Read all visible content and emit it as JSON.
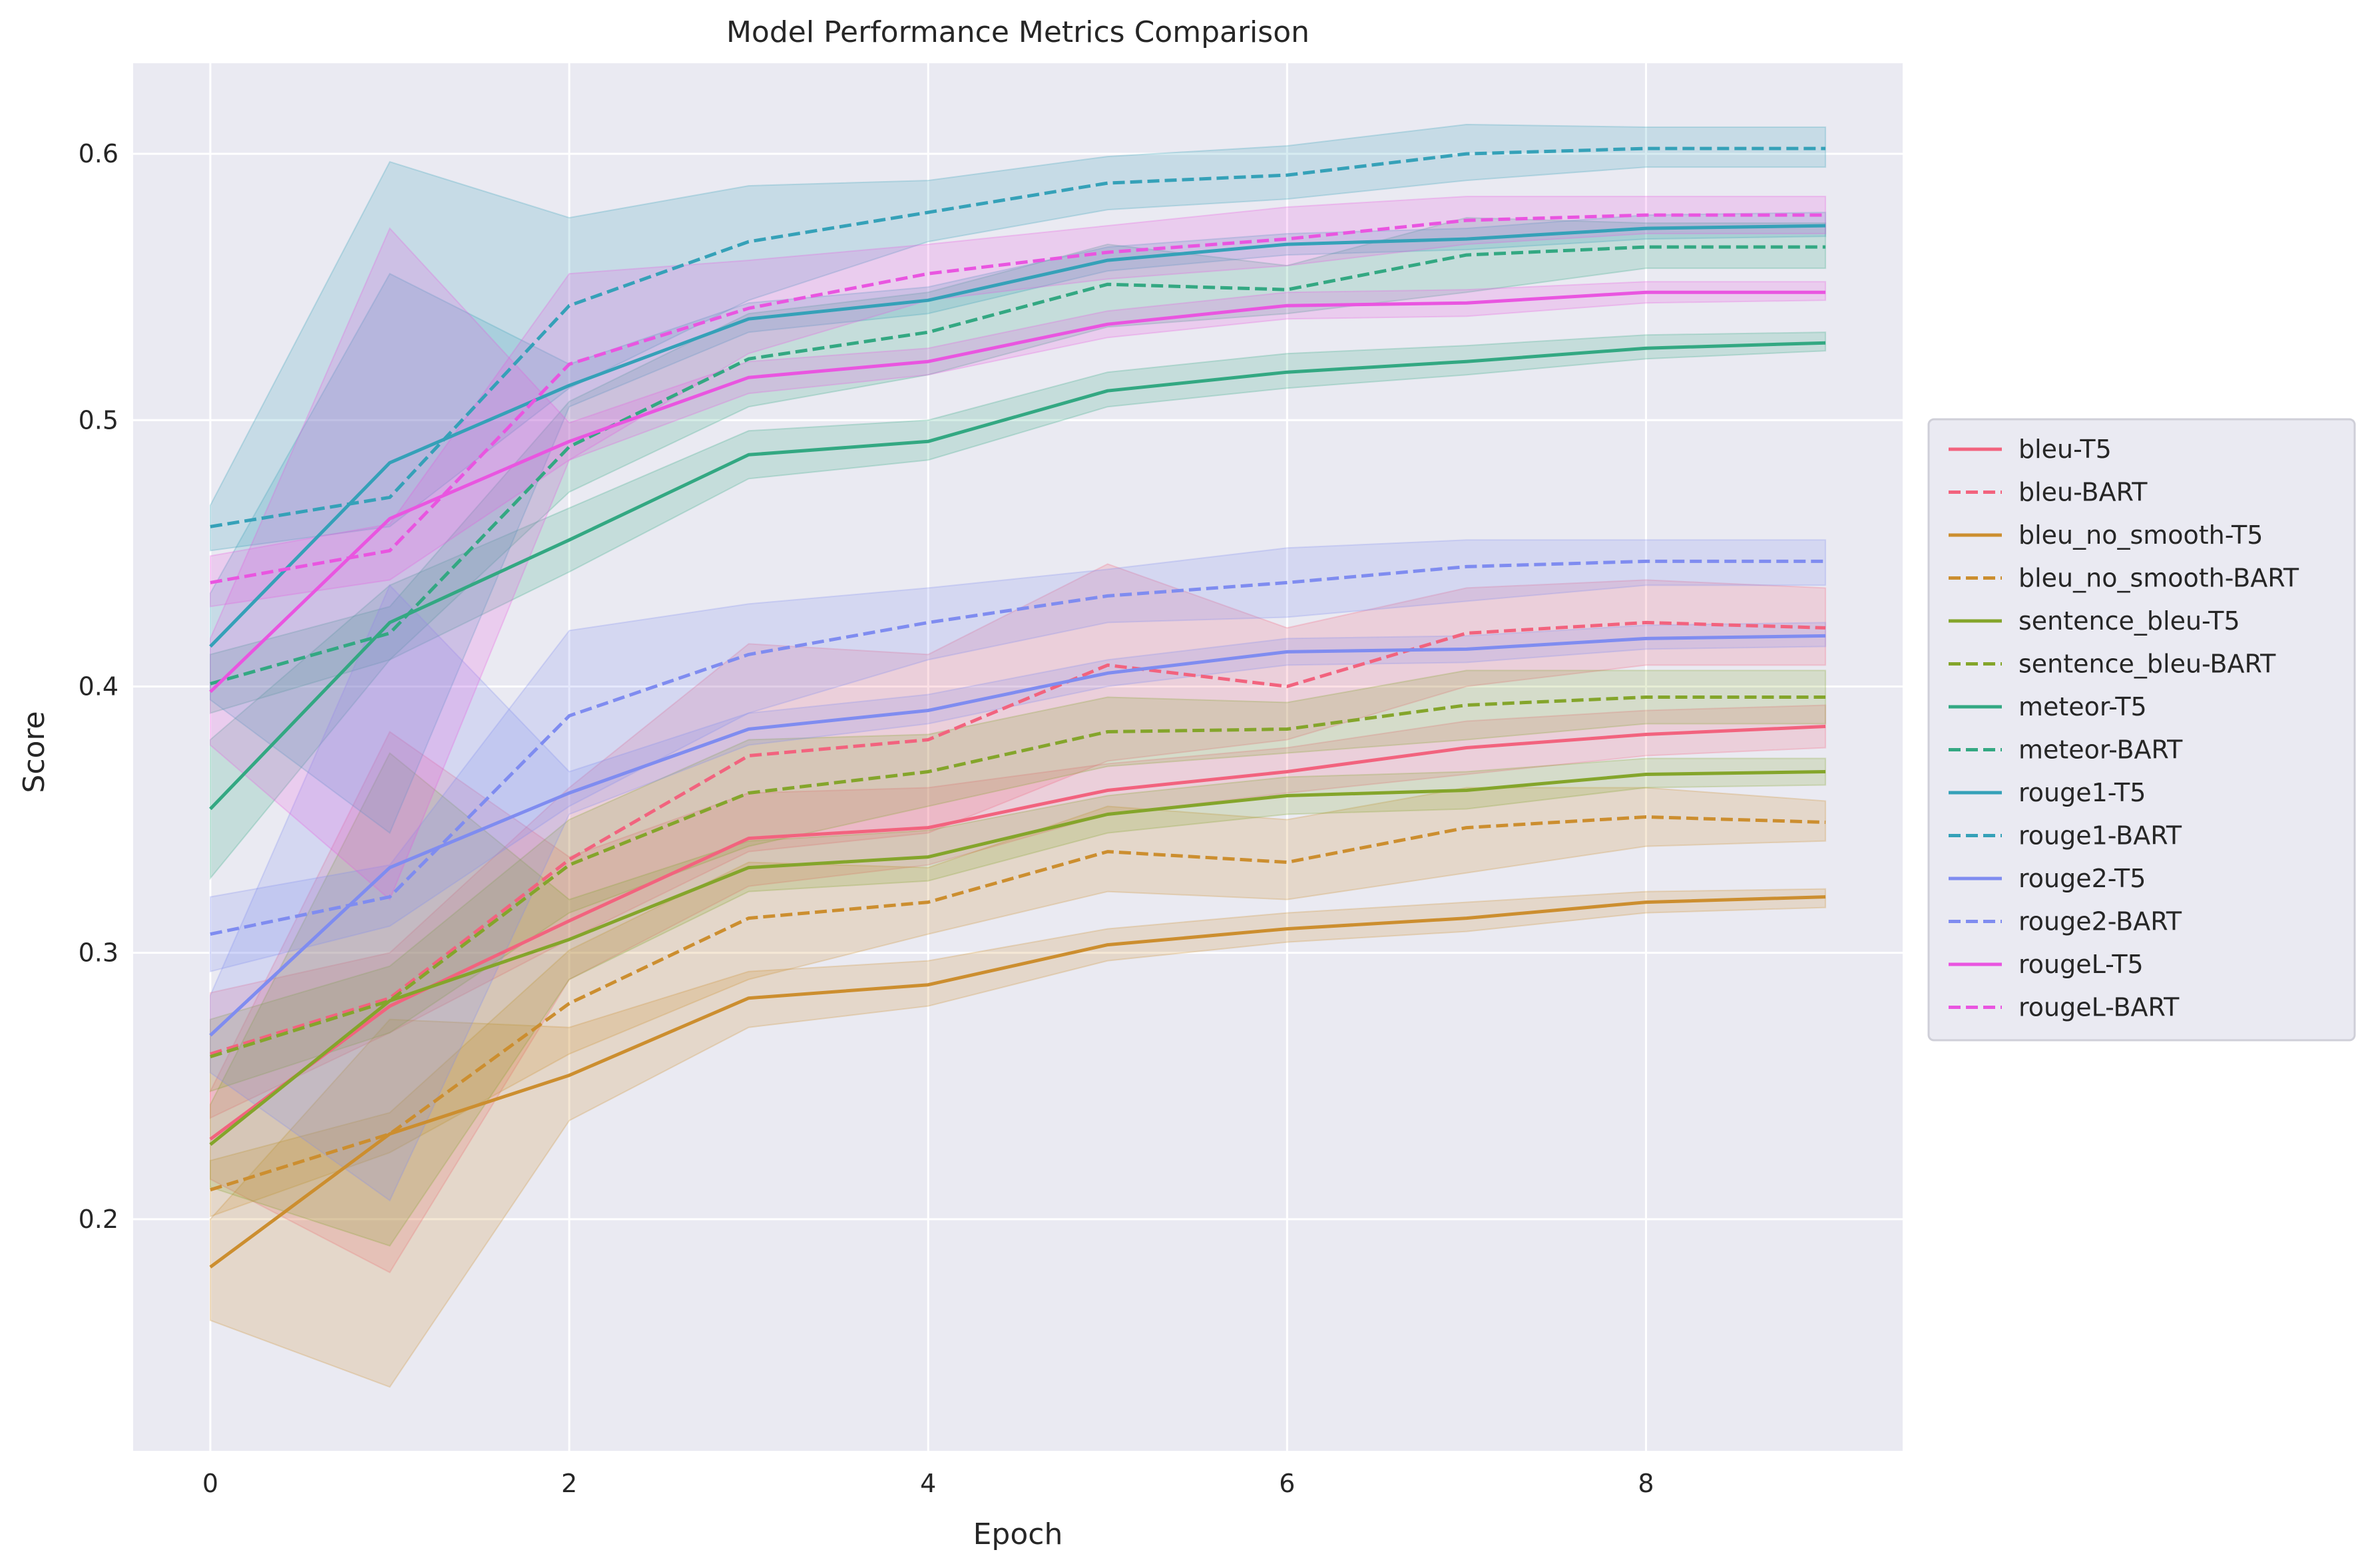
{
  "chart_data": {
    "type": "line",
    "title": "Model Performance Metrics Comparison",
    "xlabel": "Epoch",
    "ylabel": "Score",
    "xlim": [
      -0.43,
      9.43
    ],
    "ylim": [
      0.113,
      0.634
    ],
    "x_ticks": [
      0,
      2,
      4,
      6,
      8
    ],
    "y_ticks": [
      0.2,
      0.3,
      0.4,
      0.5,
      0.6
    ],
    "x_tick_labels": [
      "0",
      "2",
      "4",
      "6",
      "8"
    ],
    "y_tick_labels": [
      "0.2",
      "0.3",
      "0.4",
      "0.5",
      "0.6"
    ],
    "grid": true,
    "legend_position": "center-right, outside plot",
    "background": "#eaeaf2",
    "x": [
      0,
      1,
      2,
      3,
      4,
      5,
      6,
      7,
      8,
      9
    ],
    "series": [
      {
        "name": "bleu-T5",
        "color": "#f2637e",
        "dash": "solid",
        "values": [
          0.23,
          0.28,
          0.312,
          0.343,
          0.347,
          0.361,
          0.368,
          0.377,
          0.382,
          0.385
        ],
        "lower": [
          0.215,
          0.18,
          0.29,
          0.325,
          0.333,
          0.352,
          0.36,
          0.367,
          0.374,
          0.377
        ],
        "upper": [
          0.248,
          0.383,
          0.336,
          0.36,
          0.362,
          0.371,
          0.377,
          0.387,
          0.391,
          0.393
        ]
      },
      {
        "name": "bleu-BART",
        "color": "#f2637e",
        "dash": "dashed",
        "values": [
          0.262,
          0.283,
          0.335,
          0.374,
          0.38,
          0.408,
          0.4,
          0.42,
          0.424,
          0.422
        ],
        "lower": [
          0.238,
          0.27,
          0.305,
          0.338,
          0.345,
          0.372,
          0.38,
          0.4,
          0.408,
          0.408
        ],
        "upper": [
          0.285,
          0.3,
          0.362,
          0.416,
          0.412,
          0.446,
          0.422,
          0.437,
          0.44,
          0.437
        ]
      },
      {
        "name": "bleu_no_smooth-T5",
        "color": "#cc8e2f",
        "dash": "solid",
        "values": [
          0.182,
          0.232,
          0.254,
          0.283,
          0.288,
          0.303,
          0.309,
          0.313,
          0.319,
          0.321
        ],
        "lower": [
          0.162,
          0.137,
          0.237,
          0.272,
          0.28,
          0.297,
          0.304,
          0.308,
          0.315,
          0.317
        ],
        "upper": [
          0.2,
          0.275,
          0.272,
          0.293,
          0.297,
          0.309,
          0.315,
          0.319,
          0.323,
          0.324
        ]
      },
      {
        "name": "bleu_no_smooth-BART",
        "color": "#cc8e2f",
        "dash": "dashed",
        "values": [
          0.211,
          0.232,
          0.281,
          0.313,
          0.319,
          0.338,
          0.334,
          0.347,
          0.351,
          0.349
        ],
        "lower": [
          0.201,
          0.225,
          0.262,
          0.29,
          0.307,
          0.323,
          0.32,
          0.33,
          0.34,
          0.342
        ],
        "upper": [
          0.222,
          0.24,
          0.301,
          0.334,
          0.332,
          0.355,
          0.35,
          0.362,
          0.362,
          0.357
        ]
      },
      {
        "name": "sentence_bleu-T5",
        "color": "#84a52b",
        "dash": "solid",
        "values": [
          0.228,
          0.282,
          0.305,
          0.332,
          0.336,
          0.352,
          0.359,
          0.361,
          0.367,
          0.368
        ],
        "lower": [
          0.212,
          0.19,
          0.29,
          0.323,
          0.327,
          0.345,
          0.352,
          0.354,
          0.362,
          0.363
        ],
        "upper": [
          0.243,
          0.375,
          0.32,
          0.342,
          0.346,
          0.359,
          0.366,
          0.368,
          0.373,
          0.373
        ]
      },
      {
        "name": "sentence_bleu-BART",
        "color": "#84a52b",
        "dash": "dashed",
        "values": [
          0.261,
          0.282,
          0.333,
          0.36,
          0.368,
          0.383,
          0.384,
          0.393,
          0.396,
          0.396
        ],
        "lower": [
          0.248,
          0.27,
          0.315,
          0.34,
          0.355,
          0.37,
          0.375,
          0.38,
          0.386,
          0.386
        ],
        "upper": [
          0.275,
          0.295,
          0.35,
          0.38,
          0.382,
          0.396,
          0.394,
          0.406,
          0.406,
          0.406
        ]
      },
      {
        "name": "meteor-T5",
        "color": "#33a882",
        "dash": "solid",
        "values": [
          0.354,
          0.424,
          0.455,
          0.487,
          0.492,
          0.511,
          0.518,
          0.522,
          0.527,
          0.529
        ],
        "lower": [
          0.328,
          0.41,
          0.443,
          0.478,
          0.485,
          0.505,
          0.512,
          0.517,
          0.523,
          0.526
        ],
        "upper": [
          0.38,
          0.438,
          0.467,
          0.496,
          0.5,
          0.518,
          0.525,
          0.528,
          0.532,
          0.533
        ]
      },
      {
        "name": "meteor-BART",
        "color": "#33a882",
        "dash": "dashed",
        "values": [
          0.401,
          0.42,
          0.49,
          0.523,
          0.533,
          0.551,
          0.549,
          0.562,
          0.565,
          0.565
        ],
        "lower": [
          0.39,
          0.41,
          0.473,
          0.505,
          0.517,
          0.535,
          0.54,
          0.548,
          0.557,
          0.557
        ],
        "upper": [
          0.412,
          0.43,
          0.507,
          0.54,
          0.548,
          0.566,
          0.558,
          0.576,
          0.574,
          0.574
        ]
      },
      {
        "name": "rouge1-T5",
        "color": "#35a1b8",
        "dash": "solid",
        "values": [
          0.415,
          0.484,
          0.513,
          0.538,
          0.545,
          0.56,
          0.566,
          0.568,
          0.572,
          0.573
        ],
        "lower": [
          0.395,
          0.345,
          0.505,
          0.533,
          0.54,
          0.556,
          0.562,
          0.564,
          0.568,
          0.569
        ],
        "upper": [
          0.435,
          0.555,
          0.521,
          0.544,
          0.55,
          0.565,
          0.57,
          0.572,
          0.577,
          0.578
        ]
      },
      {
        "name": "rouge1-BART",
        "color": "#35a1b8",
        "dash": "dashed",
        "values": [
          0.46,
          0.471,
          0.543,
          0.567,
          0.578,
          0.589,
          0.592,
          0.6,
          0.602,
          0.602
        ],
        "lower": [
          0.451,
          0.46,
          0.512,
          0.545,
          0.567,
          0.579,
          0.583,
          0.59,
          0.595,
          0.595
        ],
        "upper": [
          0.468,
          0.597,
          0.576,
          0.588,
          0.59,
          0.599,
          0.603,
          0.611,
          0.61,
          0.61
        ]
      },
      {
        "name": "rouge2-T5",
        "color": "#7f8cf0",
        "dash": "solid",
        "values": [
          0.269,
          0.332,
          0.36,
          0.384,
          0.391,
          0.405,
          0.413,
          0.414,
          0.418,
          0.419
        ],
        "lower": [
          0.255,
          0.207,
          0.352,
          0.378,
          0.386,
          0.4,
          0.408,
          0.409,
          0.414,
          0.415
        ],
        "upper": [
          0.284,
          0.438,
          0.368,
          0.39,
          0.397,
          0.41,
          0.418,
          0.419,
          0.423,
          0.424
        ]
      },
      {
        "name": "rouge2-BART",
        "color": "#7f8cf0",
        "dash": "dashed",
        "values": [
          0.307,
          0.321,
          0.389,
          0.412,
          0.424,
          0.434,
          0.439,
          0.445,
          0.447,
          0.447
        ],
        "lower": [
          0.293,
          0.31,
          0.355,
          0.39,
          0.41,
          0.424,
          0.426,
          0.432,
          0.438,
          0.438
        ],
        "upper": [
          0.321,
          0.333,
          0.421,
          0.431,
          0.437,
          0.444,
          0.452,
          0.455,
          0.455,
          0.455
        ]
      },
      {
        "name": "rougeL-T5",
        "color": "#e955e0",
        "dash": "solid",
        "values": [
          0.398,
          0.463,
          0.492,
          0.516,
          0.522,
          0.536,
          0.543,
          0.544,
          0.548,
          0.548
        ],
        "lower": [
          0.378,
          0.32,
          0.485,
          0.51,
          0.517,
          0.531,
          0.538,
          0.539,
          0.544,
          0.545
        ],
        "upper": [
          0.418,
          0.572,
          0.499,
          0.522,
          0.527,
          0.541,
          0.548,
          0.549,
          0.552,
          0.552
        ]
      },
      {
        "name": "rougeL-BART",
        "color": "#e955e0",
        "dash": "dashed",
        "values": [
          0.439,
          0.451,
          0.521,
          0.542,
          0.555,
          0.563,
          0.568,
          0.575,
          0.577,
          0.577
        ],
        "lower": [
          0.43,
          0.44,
          0.485,
          0.525,
          0.545,
          0.553,
          0.558,
          0.566,
          0.57,
          0.57
        ],
        "upper": [
          0.449,
          0.461,
          0.555,
          0.56,
          0.566,
          0.573,
          0.58,
          0.584,
          0.584,
          0.584
        ]
      }
    ]
  }
}
